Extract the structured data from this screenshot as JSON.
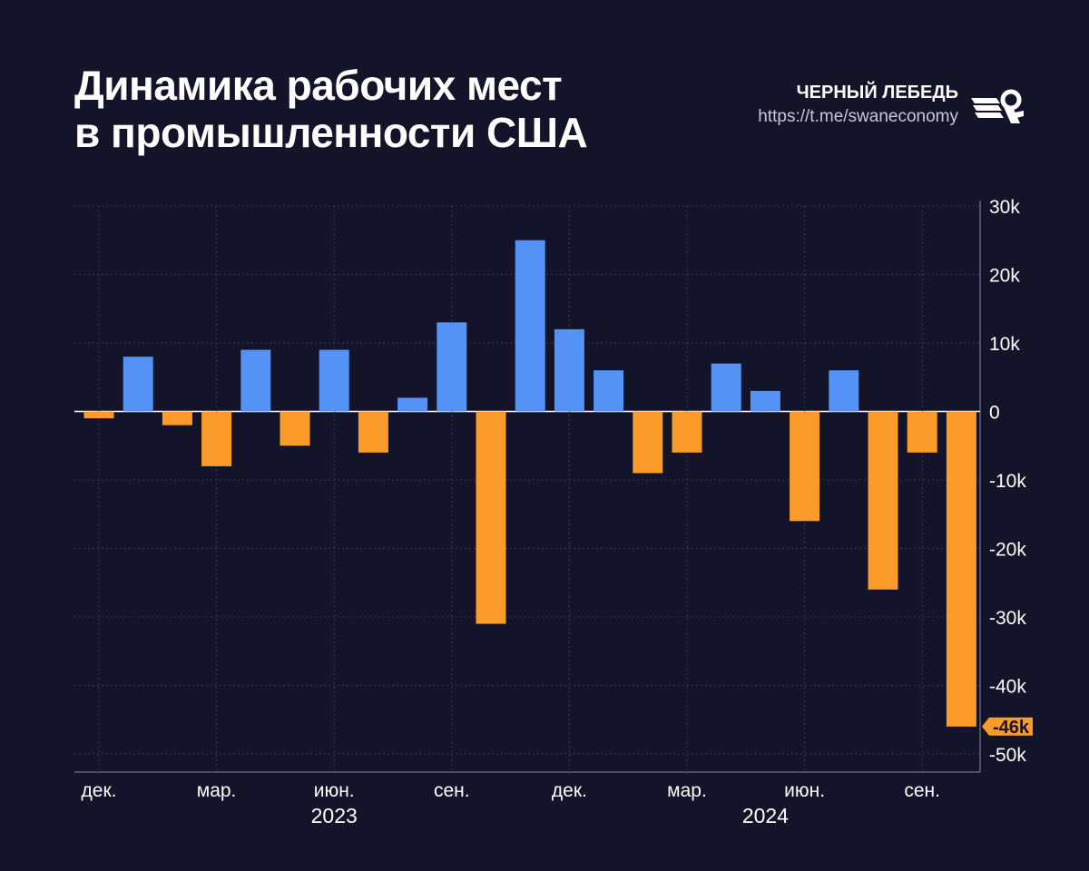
{
  "header": {
    "title_line1": "Динамика рабочих мест",
    "title_line2": "в промышленности США",
    "brand_name": "ЧЕРНЫЙ ЛЕБЕДЬ",
    "brand_url": "https://t.me/swaneconomy"
  },
  "colors": {
    "background": "#13132a",
    "positive": "#5592f5",
    "negative": "#fb9c2a",
    "grid": "#3a3a55"
  },
  "chart_data": {
    "type": "bar",
    "title": "Динамика рабочих мест в промышленности США",
    "xlabel": "",
    "ylabel": "",
    "ylim": [
      -50000,
      30000
    ],
    "y_ticks": [
      30000,
      20000,
      10000,
      0,
      -10000,
      -20000,
      -30000,
      -40000,
      -50000
    ],
    "y_tick_labels": [
      "30k",
      "20k",
      "10k",
      "0",
      "-10k",
      "-20k",
      "-30k",
      "-40k",
      "-50k"
    ],
    "grid": true,
    "categories": [
      "2022-12",
      "2023-01",
      "2023-02",
      "2023-03",
      "2023-04",
      "2023-05",
      "2023-06",
      "2023-07",
      "2023-08",
      "2023-09",
      "2023-10",
      "2023-11",
      "2023-12",
      "2024-01",
      "2024-02",
      "2024-03",
      "2024-04",
      "2024-05",
      "2024-06",
      "2024-07",
      "2024-08",
      "2024-09",
      "2024-10"
    ],
    "values": [
      -1000,
      8000,
      -2000,
      -8000,
      9000,
      -5000,
      9000,
      -6000,
      2000,
      13000,
      -31000,
      25000,
      12000,
      6000,
      -9000,
      -6000,
      7000,
      3000,
      -16000,
      6000,
      -26000,
      -6000,
      -46000
    ],
    "x_tick_labels": [
      {
        "label": "дек.",
        "index": 0
      },
      {
        "label": "мар.",
        "index": 3
      },
      {
        "label": "июн.",
        "index": 6
      },
      {
        "label": "сен.",
        "index": 9
      },
      {
        "label": "дек.",
        "index": 12
      },
      {
        "label": "мар.",
        "index": 15
      },
      {
        "label": "июн.",
        "index": 18
      },
      {
        "label": "сен.",
        "index": 21
      }
    ],
    "year_labels": [
      {
        "label": "2023",
        "index": 6
      },
      {
        "label": "2024",
        "index": 17
      }
    ],
    "last_value_label": "-46k"
  }
}
